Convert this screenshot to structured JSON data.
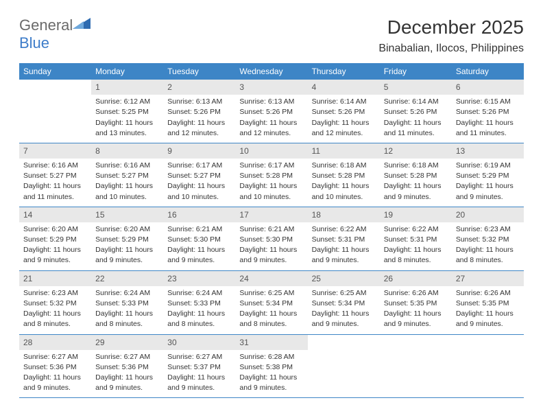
{
  "logo": {
    "word1": "General",
    "word2": "Blue"
  },
  "title": "December 2025",
  "location": "Binabalian, Ilocos, Philippines",
  "colors": {
    "header_bg": "#3d85c6",
    "header_text": "#ffffff",
    "daynum_bg": "#e8e8e8",
    "border": "#3d85c6",
    "logo_gray": "#6a6a6a",
    "logo_blue": "#3d7cc9"
  },
  "weekdays": [
    "Sunday",
    "Monday",
    "Tuesday",
    "Wednesday",
    "Thursday",
    "Friday",
    "Saturday"
  ],
  "weeks": [
    [
      {
        "empty": true
      },
      {
        "n": "1",
        "sr": "Sunrise: 6:12 AM",
        "ss": "Sunset: 5:25 PM",
        "dl1": "Daylight: 11 hours",
        "dl2": "and 13 minutes."
      },
      {
        "n": "2",
        "sr": "Sunrise: 6:13 AM",
        "ss": "Sunset: 5:26 PM",
        "dl1": "Daylight: 11 hours",
        "dl2": "and 12 minutes."
      },
      {
        "n": "3",
        "sr": "Sunrise: 6:13 AM",
        "ss": "Sunset: 5:26 PM",
        "dl1": "Daylight: 11 hours",
        "dl2": "and 12 minutes."
      },
      {
        "n": "4",
        "sr": "Sunrise: 6:14 AM",
        "ss": "Sunset: 5:26 PM",
        "dl1": "Daylight: 11 hours",
        "dl2": "and 12 minutes."
      },
      {
        "n": "5",
        "sr": "Sunrise: 6:14 AM",
        "ss": "Sunset: 5:26 PM",
        "dl1": "Daylight: 11 hours",
        "dl2": "and 11 minutes."
      },
      {
        "n": "6",
        "sr": "Sunrise: 6:15 AM",
        "ss": "Sunset: 5:26 PM",
        "dl1": "Daylight: 11 hours",
        "dl2": "and 11 minutes."
      }
    ],
    [
      {
        "n": "7",
        "sr": "Sunrise: 6:16 AM",
        "ss": "Sunset: 5:27 PM",
        "dl1": "Daylight: 11 hours",
        "dl2": "and 11 minutes."
      },
      {
        "n": "8",
        "sr": "Sunrise: 6:16 AM",
        "ss": "Sunset: 5:27 PM",
        "dl1": "Daylight: 11 hours",
        "dl2": "and 10 minutes."
      },
      {
        "n": "9",
        "sr": "Sunrise: 6:17 AM",
        "ss": "Sunset: 5:27 PM",
        "dl1": "Daylight: 11 hours",
        "dl2": "and 10 minutes."
      },
      {
        "n": "10",
        "sr": "Sunrise: 6:17 AM",
        "ss": "Sunset: 5:28 PM",
        "dl1": "Daylight: 11 hours",
        "dl2": "and 10 minutes."
      },
      {
        "n": "11",
        "sr": "Sunrise: 6:18 AM",
        "ss": "Sunset: 5:28 PM",
        "dl1": "Daylight: 11 hours",
        "dl2": "and 10 minutes."
      },
      {
        "n": "12",
        "sr": "Sunrise: 6:18 AM",
        "ss": "Sunset: 5:28 PM",
        "dl1": "Daylight: 11 hours",
        "dl2": "and 9 minutes."
      },
      {
        "n": "13",
        "sr": "Sunrise: 6:19 AM",
        "ss": "Sunset: 5:29 PM",
        "dl1": "Daylight: 11 hours",
        "dl2": "and 9 minutes."
      }
    ],
    [
      {
        "n": "14",
        "sr": "Sunrise: 6:20 AM",
        "ss": "Sunset: 5:29 PM",
        "dl1": "Daylight: 11 hours",
        "dl2": "and 9 minutes."
      },
      {
        "n": "15",
        "sr": "Sunrise: 6:20 AM",
        "ss": "Sunset: 5:29 PM",
        "dl1": "Daylight: 11 hours",
        "dl2": "and 9 minutes."
      },
      {
        "n": "16",
        "sr": "Sunrise: 6:21 AM",
        "ss": "Sunset: 5:30 PM",
        "dl1": "Daylight: 11 hours",
        "dl2": "and 9 minutes."
      },
      {
        "n": "17",
        "sr": "Sunrise: 6:21 AM",
        "ss": "Sunset: 5:30 PM",
        "dl1": "Daylight: 11 hours",
        "dl2": "and 9 minutes."
      },
      {
        "n": "18",
        "sr": "Sunrise: 6:22 AM",
        "ss": "Sunset: 5:31 PM",
        "dl1": "Daylight: 11 hours",
        "dl2": "and 9 minutes."
      },
      {
        "n": "19",
        "sr": "Sunrise: 6:22 AM",
        "ss": "Sunset: 5:31 PM",
        "dl1": "Daylight: 11 hours",
        "dl2": "and 8 minutes."
      },
      {
        "n": "20",
        "sr": "Sunrise: 6:23 AM",
        "ss": "Sunset: 5:32 PM",
        "dl1": "Daylight: 11 hours",
        "dl2": "and 8 minutes."
      }
    ],
    [
      {
        "n": "21",
        "sr": "Sunrise: 6:23 AM",
        "ss": "Sunset: 5:32 PM",
        "dl1": "Daylight: 11 hours",
        "dl2": "and 8 minutes."
      },
      {
        "n": "22",
        "sr": "Sunrise: 6:24 AM",
        "ss": "Sunset: 5:33 PM",
        "dl1": "Daylight: 11 hours",
        "dl2": "and 8 minutes."
      },
      {
        "n": "23",
        "sr": "Sunrise: 6:24 AM",
        "ss": "Sunset: 5:33 PM",
        "dl1": "Daylight: 11 hours",
        "dl2": "and 8 minutes."
      },
      {
        "n": "24",
        "sr": "Sunrise: 6:25 AM",
        "ss": "Sunset: 5:34 PM",
        "dl1": "Daylight: 11 hours",
        "dl2": "and 8 minutes."
      },
      {
        "n": "25",
        "sr": "Sunrise: 6:25 AM",
        "ss": "Sunset: 5:34 PM",
        "dl1": "Daylight: 11 hours",
        "dl2": "and 9 minutes."
      },
      {
        "n": "26",
        "sr": "Sunrise: 6:26 AM",
        "ss": "Sunset: 5:35 PM",
        "dl1": "Daylight: 11 hours",
        "dl2": "and 9 minutes."
      },
      {
        "n": "27",
        "sr": "Sunrise: 6:26 AM",
        "ss": "Sunset: 5:35 PM",
        "dl1": "Daylight: 11 hours",
        "dl2": "and 9 minutes."
      }
    ],
    [
      {
        "n": "28",
        "sr": "Sunrise: 6:27 AM",
        "ss": "Sunset: 5:36 PM",
        "dl1": "Daylight: 11 hours",
        "dl2": "and 9 minutes."
      },
      {
        "n": "29",
        "sr": "Sunrise: 6:27 AM",
        "ss": "Sunset: 5:36 PM",
        "dl1": "Daylight: 11 hours",
        "dl2": "and 9 minutes."
      },
      {
        "n": "30",
        "sr": "Sunrise: 6:27 AM",
        "ss": "Sunset: 5:37 PM",
        "dl1": "Daylight: 11 hours",
        "dl2": "and 9 minutes."
      },
      {
        "n": "31",
        "sr": "Sunrise: 6:28 AM",
        "ss": "Sunset: 5:38 PM",
        "dl1": "Daylight: 11 hours",
        "dl2": "and 9 minutes."
      },
      {
        "empty": true
      },
      {
        "empty": true
      },
      {
        "empty": true
      }
    ]
  ]
}
